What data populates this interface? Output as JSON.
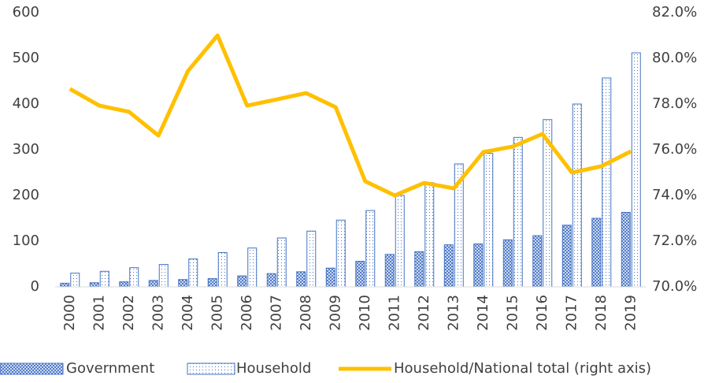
{
  "chart_data": {
    "type": "bar_line",
    "categories": [
      "2000",
      "2001",
      "2002",
      "2003",
      "2004",
      "2005",
      "2006",
      "2007",
      "2008",
      "2009",
      "2010",
      "2011",
      "2012",
      "2013",
      "2014",
      "2015",
      "2016",
      "2017",
      "2018",
      "2019"
    ],
    "series": [
      {
        "name": "Government",
        "color": "#4472c4",
        "type": "bar",
        "values": [
          8,
          9,
          11,
          14,
          16,
          18,
          24,
          29,
          33,
          41,
          56,
          71,
          77,
          92,
          94,
          103,
          112,
          135,
          150,
          163
        ]
      },
      {
        "name": "Household",
        "color": "#4472c4",
        "type": "bar",
        "values": [
          30,
          34,
          42,
          49,
          61,
          75,
          85,
          107,
          122,
          146,
          167,
          200,
          228,
          269,
          292,
          327,
          366,
          400,
          457,
          512
        ]
      },
      {
        "name": "Household/National total (right axis)",
        "color": "#ffc000",
        "type": "line",
        "axis": "y2",
        "values": [
          78.66,
          77.93,
          77.66,
          76.62,
          79.45,
          81.0,
          77.93,
          78.2,
          78.48,
          77.86,
          74.62,
          74.0,
          74.55,
          74.31,
          75.9,
          76.14,
          76.69,
          75.0,
          75.28,
          75.93
        ]
      }
    ],
    "ylim": [
      0,
      600
    ],
    "yticks": [
      0,
      100,
      200,
      300,
      400,
      500,
      600
    ],
    "y2lim": [
      70,
      82
    ],
    "y2ticks": [
      {
        "value": 70,
        "label": "70.0%"
      },
      {
        "value": 72,
        "label": "72.0%"
      },
      {
        "value": 74,
        "label": "74.0%"
      },
      {
        "value": 76,
        "label": "76.0%"
      },
      {
        "value": 78,
        "label": "78.0%"
      },
      {
        "value": 80,
        "label": "80.0%"
      },
      {
        "value": 82,
        "label": "82.0%"
      }
    ],
    "grid": false,
    "legend": "bottom"
  }
}
